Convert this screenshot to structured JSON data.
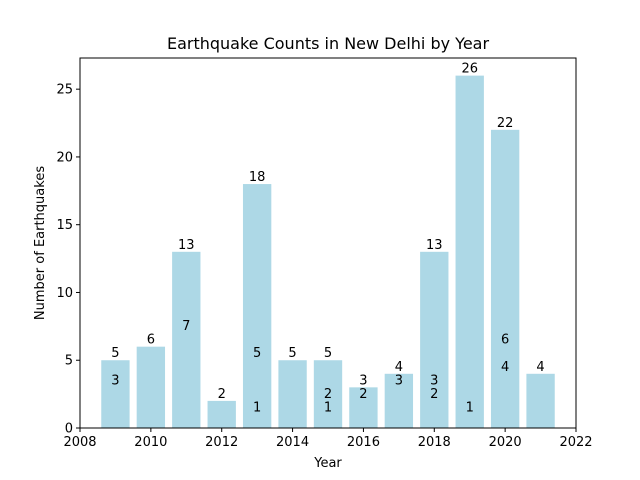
{
  "chart_data": {
    "type": "bar",
    "title": "Earthquake Counts in New Delhi by Year",
    "xlabel": "Year",
    "ylabel": "Number of Earthquakes",
    "xlim": [
      2008,
      2022
    ],
    "ylim": [
      0,
      27.3
    ],
    "xticks": [
      "2008",
      "2010",
      "2012",
      "2014",
      "2016",
      "2018",
      "2020",
      "2022"
    ],
    "yticks": [
      "0",
      "5",
      "10",
      "15",
      "20",
      "25"
    ],
    "bar_color": "#add8e6",
    "grid": false,
    "bars": [
      {
        "x": 2009,
        "value": 5,
        "labels": [
          {
            "text": "5",
            "y": 5
          },
          {
            "text": "3",
            "y": 3
          }
        ]
      },
      {
        "x": 2010,
        "value": 6,
        "labels": [
          {
            "text": "6",
            "y": 6
          }
        ]
      },
      {
        "x": 2011,
        "value": 13,
        "labels": [
          {
            "text": "13",
            "y": 13
          },
          {
            "text": "7",
            "y": 7
          }
        ]
      },
      {
        "x": 2012,
        "value": 2,
        "labels": [
          {
            "text": "2",
            "y": 2
          }
        ]
      },
      {
        "x": 2013,
        "value": 18,
        "labels": [
          {
            "text": "18",
            "y": 18
          },
          {
            "text": "5",
            "y": 5
          },
          {
            "text": "1",
            "y": 1
          }
        ]
      },
      {
        "x": 2014,
        "value": 5,
        "labels": [
          {
            "text": "5",
            "y": 5
          }
        ]
      },
      {
        "x": 2015,
        "value": 5,
        "labels": [
          {
            "text": "5",
            "y": 5
          },
          {
            "text": "2",
            "y": 2
          },
          {
            "text": "1",
            "y": 1
          }
        ]
      },
      {
        "x": 2016,
        "value": 3,
        "labels": [
          {
            "text": "3",
            "y": 3
          },
          {
            "text": "2",
            "y": 2
          }
        ]
      },
      {
        "x": 2017,
        "value": 4,
        "labels": [
          {
            "text": "4",
            "y": 4
          },
          {
            "text": "3",
            "y": 3
          }
        ]
      },
      {
        "x": 2018,
        "value": 13,
        "labels": [
          {
            "text": "13",
            "y": 13
          },
          {
            "text": "3",
            "y": 3
          },
          {
            "text": "2",
            "y": 2
          }
        ]
      },
      {
        "x": 2019,
        "value": 26,
        "labels": [
          {
            "text": "26",
            "y": 26
          },
          {
            "text": "1",
            "y": 1
          }
        ]
      },
      {
        "x": 2020,
        "value": 22,
        "labels": [
          {
            "text": "22",
            "y": 22
          },
          {
            "text": "6",
            "y": 6
          },
          {
            "text": "4",
            "y": 4
          }
        ]
      },
      {
        "x": 2021,
        "value": 4,
        "labels": [
          {
            "text": "4",
            "y": 4
          }
        ]
      }
    ]
  }
}
